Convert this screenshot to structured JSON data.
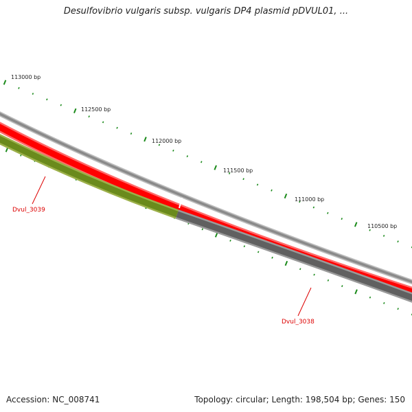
{
  "title": "Desulfovibrio vulgaris subsp. vulgaris DP4 plasmid pDVUL01, ...",
  "footer": {
    "accession": "Accession: NC_008741",
    "summary": "Topology: circular; Length: 198,504 bp; Genes: 150"
  },
  "scale_labels": [
    {
      "label": "113000 bp"
    },
    {
      "label": "112500 bp"
    },
    {
      "label": "112000 bp"
    },
    {
      "label": "111500 bp"
    },
    {
      "label": "111000 bp"
    },
    {
      "label": "110500 bp"
    }
  ],
  "genes": [
    {
      "name": "Dvul_3039",
      "color": "#6a8a1c"
    },
    {
      "name": "Dvul_3038",
      "color": "#606060"
    }
  ],
  "colors": {
    "backbone": "#8a8a8a",
    "forward_strand": "#ff0000",
    "tick": "#1a8a1a"
  }
}
